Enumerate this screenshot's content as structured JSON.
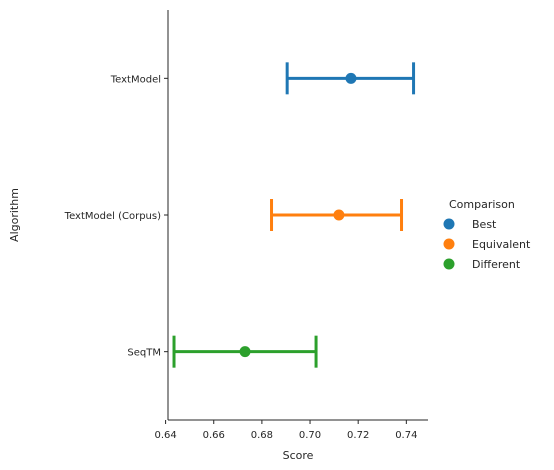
{
  "chart_data": {
    "type": "pointplot",
    "orientation": "horizontal",
    "xlabel": "Score",
    "ylabel": "Algorithm",
    "xlim": [
      0.641,
      0.749
    ],
    "xticks": [
      0.64,
      0.66,
      0.68,
      0.7,
      0.72,
      0.74
    ],
    "xtick_labels": [
      "0.64",
      "0.66",
      "0.68",
      "0.70",
      "0.72",
      "0.74"
    ],
    "categories": [
      "TextModel",
      "TextModel (Corpus)",
      "SeqTM"
    ],
    "points": [
      {
        "category": "TextModel",
        "value": 0.717,
        "ci_low": 0.6905,
        "ci_high": 0.743,
        "group": "Best",
        "color": "#1f77b4"
      },
      {
        "category": "TextModel (Corpus)",
        "value": 0.712,
        "ci_low": 0.684,
        "ci_high": 0.738,
        "group": "Equivalent",
        "color": "#ff7f0e"
      },
      {
        "category": "SeqTM",
        "value": 0.673,
        "ci_low": 0.6435,
        "ci_high": 0.7025,
        "group": "Different",
        "color": "#2ca02c"
      }
    ],
    "legend": {
      "title": "Comparison",
      "placement": "right",
      "entries": [
        {
          "label": "Best",
          "color": "#1f77b4"
        },
        {
          "label": "Equivalent",
          "color": "#ff7f0e"
        },
        {
          "label": "Different",
          "color": "#2ca02c"
        }
      ]
    },
    "grid": false
  }
}
